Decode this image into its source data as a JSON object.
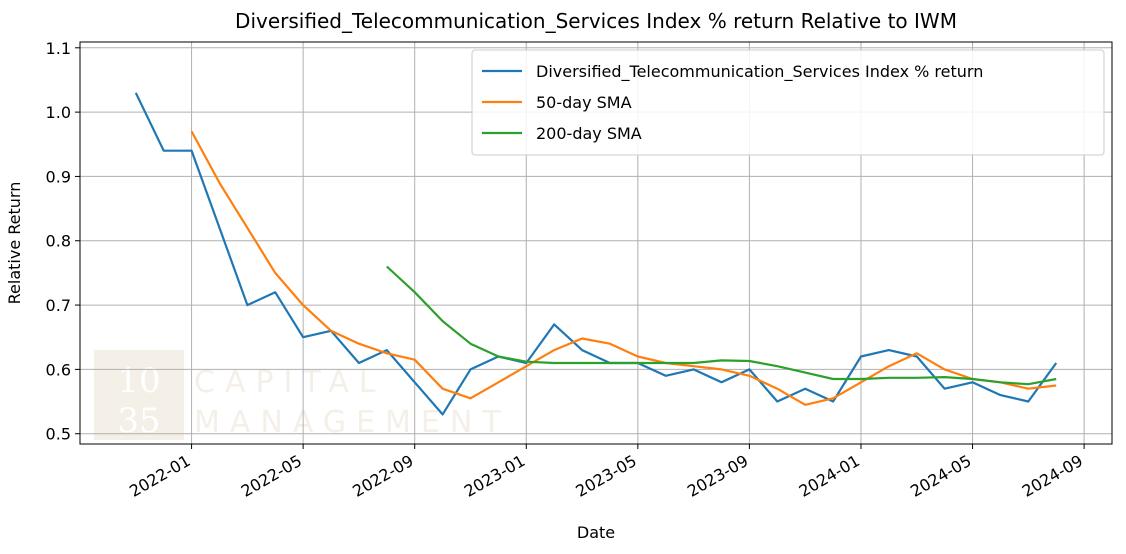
{
  "chart_data": {
    "type": "line",
    "title": "Diversified_Telecommunication_Services Index % return Relative to IWM",
    "xlabel": "Date",
    "ylabel": "Relative Return",
    "watermark": [
      "10",
      "35",
      "CAPITAL",
      "MANAGEMENT"
    ],
    "x": [
      "2021-11",
      "2021-12",
      "2022-01",
      "2022-02",
      "2022-03",
      "2022-04",
      "2022-05",
      "2022-06",
      "2022-07",
      "2022-08",
      "2022-09",
      "2022-10",
      "2022-11",
      "2022-12",
      "2023-01",
      "2023-02",
      "2023-03",
      "2023-04",
      "2023-05",
      "2023-06",
      "2023-07",
      "2023-08",
      "2023-09",
      "2023-10",
      "2023-11",
      "2023-12",
      "2024-01",
      "2024-02",
      "2024-03",
      "2024-04",
      "2024-05",
      "2024-06",
      "2024-07",
      "2024-08"
    ],
    "series": [
      {
        "name": "Diversified_Telecommunication_Services Index % return",
        "color": "#1f77b4",
        "values": [
          1.03,
          0.94,
          0.94,
          0.82,
          0.7,
          0.72,
          0.65,
          0.66,
          0.61,
          0.63,
          0.58,
          0.53,
          0.6,
          0.62,
          0.61,
          0.67,
          0.63,
          0.61,
          0.61,
          0.59,
          0.6,
          0.58,
          0.6,
          0.55,
          0.57,
          0.55,
          0.62,
          0.63,
          0.62,
          0.57,
          0.58,
          0.56,
          0.55,
          0.61
        ]
      },
      {
        "name": "50-day SMA",
        "color": "#ff7f0e",
        "values": [
          null,
          null,
          0.97,
          0.89,
          0.82,
          0.75,
          0.7,
          0.66,
          0.64,
          0.625,
          0.615,
          0.57,
          0.555,
          0.58,
          0.605,
          0.63,
          0.648,
          0.64,
          0.62,
          0.61,
          0.605,
          0.6,
          0.59,
          0.57,
          0.545,
          0.555,
          0.58,
          0.605,
          0.625,
          0.6,
          0.585,
          0.58,
          0.57,
          0.575
        ]
      },
      {
        "name": "200-day SMA",
        "color": "#2ca02c",
        "values": [
          null,
          null,
          null,
          null,
          null,
          null,
          null,
          null,
          null,
          0.76,
          0.72,
          0.675,
          0.64,
          0.62,
          0.612,
          0.61,
          0.61,
          0.61,
          0.61,
          0.61,
          0.61,
          0.614,
          0.613,
          0.605,
          0.595,
          0.585,
          0.585,
          0.587,
          0.587,
          0.588,
          0.585,
          0.58,
          0.577,
          0.585
        ]
      }
    ],
    "xlim": [
      "2021-09",
      "2024-10"
    ],
    "xticks": [
      "2022-01",
      "2022-05",
      "2022-09",
      "2023-01",
      "2023-05",
      "2023-09",
      "2024-01",
      "2024-05",
      "2024-09"
    ],
    "ylim": [
      0.484,
      1.109
    ],
    "yticks": [
      0.5,
      0.6,
      0.7,
      0.8,
      0.9,
      {
        "value": 1,
        "label": "1.0"
      },
      1.1
    ],
    "grid": true,
    "legend": "upper right"
  }
}
